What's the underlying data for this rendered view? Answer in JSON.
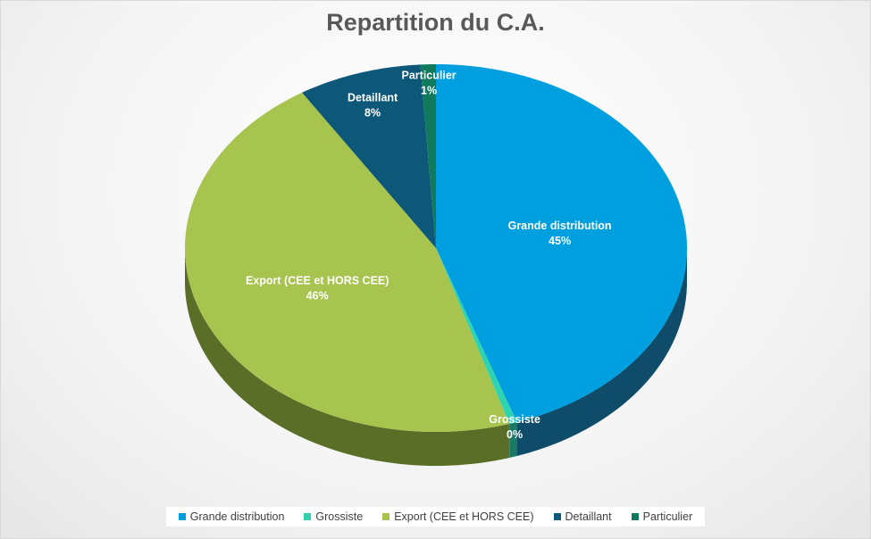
{
  "chart_data": {
    "type": "pie",
    "title": "Repartition du C.A.",
    "three_d": true,
    "legend_position": "bottom",
    "slices": [
      {
        "name": "Grande distribution",
        "value": 45,
        "label": "45%",
        "color": "#009FDF",
        "side_color": "#0F4C6A"
      },
      {
        "name": "Grossiste",
        "value": 0.5,
        "label": "0%",
        "color": "#2ED3B0",
        "side_color": "#1A7A66"
      },
      {
        "name": "Export (CEE et HORS CEE)",
        "value": 46,
        "label": "46%",
        "color": "#A7C44F",
        "side_color": "#5B6E27"
      },
      {
        "name": "Detaillant",
        "value": 8,
        "label": "8%",
        "color": "#0D5878",
        "side_color": "#0A3C52"
      },
      {
        "name": "Particulier",
        "value": 1,
        "label": "1%",
        "color": "#127A5C",
        "side_color": "#0B4F3C"
      }
    ]
  }
}
